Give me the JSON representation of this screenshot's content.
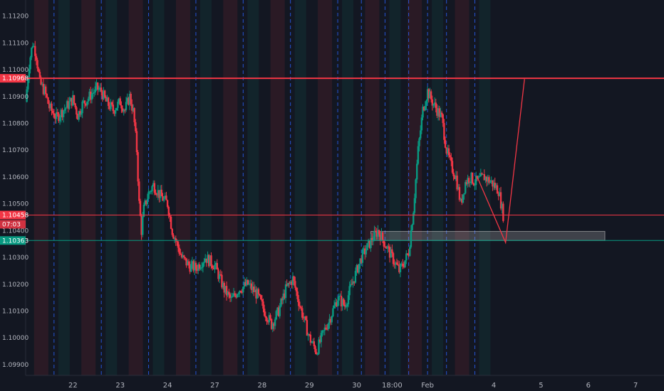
{
  "chart_data": {
    "type": "candlestick",
    "ylim": [
      1.0986,
      1.1126
    ],
    "y_ticks": [
      "1.11200",
      "1.11100",
      "1.11000",
      "1.10900",
      "1.10800",
      "1.10700",
      "1.10600",
      "1.10500",
      "1.10400",
      "1.10300",
      "1.10200",
      "1.10100",
      "1.10000",
      "1.09900"
    ],
    "x_ticks": [
      {
        "label": "22",
        "t": 1
      },
      {
        "label": "23",
        "t": 2
      },
      {
        "label": "24",
        "t": 3
      },
      {
        "label": "27",
        "t": 4
      },
      {
        "label": "28",
        "t": 5
      },
      {
        "label": "29",
        "t": 6
      },
      {
        "label": "30",
        "t": 7
      },
      {
        "label": "18:00",
        "t": 7.75
      },
      {
        "label": "Feb",
        "t": 8.5
      },
      {
        "label": "4",
        "t": 9.9
      },
      {
        "label": "5",
        "t": 10.9
      },
      {
        "label": "6",
        "t": 11.9
      },
      {
        "label": "7",
        "t": 12.9
      }
    ],
    "session_separators_t": [
      0.6,
      1.6,
      2.6,
      3.6,
      4.6,
      5.6,
      6.6,
      7.1,
      7.6,
      8.1,
      8.5,
      8.9,
      9.5
    ],
    "horizontal_lines": [
      {
        "price": 1.10968,
        "label": "1.10968",
        "color": "#f23645",
        "width": 2
      },
      {
        "price": 1.10458,
        "label": "1.10458",
        "color": "#f23645",
        "width": 1
      },
      {
        "price": 1.10363,
        "label": "1.10363",
        "color": "#089981",
        "width": 1
      }
    ],
    "countdown": "07:03",
    "zone": {
      "t_start": 7.3,
      "t_end": 12.25,
      "price_low": 1.10363,
      "price_high": 1.10397
    },
    "projection": [
      {
        "t": 9.55,
        "price": 1.106
      },
      {
        "t": 10.15,
        "price": 1.10355
      },
      {
        "t": 10.55,
        "price": 1.10965
      }
    ],
    "price_path": [
      {
        "t": 0.0,
        "price": 1.1088
      },
      {
        "t": 0.08,
        "price": 1.1103
      },
      {
        "t": 0.15,
        "price": 1.111
      },
      {
        "t": 0.22,
        "price": 1.1106
      },
      {
        "t": 0.3,
        "price": 1.1095
      },
      {
        "t": 0.4,
        "price": 1.1092
      },
      {
        "t": 0.5,
        "price": 1.1086
      },
      {
        "t": 0.65,
        "price": 1.1082
      },
      {
        "t": 0.8,
        "price": 1.1085
      },
      {
        "t": 1.0,
        "price": 1.1089
      },
      {
        "t": 1.1,
        "price": 1.1083
      },
      {
        "t": 1.2,
        "price": 1.1087
      },
      {
        "t": 1.35,
        "price": 1.109
      },
      {
        "t": 1.5,
        "price": 1.1093
      },
      {
        "t": 1.6,
        "price": 1.1092
      },
      {
        "t": 1.7,
        "price": 1.1088
      },
      {
        "t": 1.85,
        "price": 1.1085
      },
      {
        "t": 2.0,
        "price": 1.1088
      },
      {
        "t": 2.1,
        "price": 1.1085
      },
      {
        "t": 2.2,
        "price": 1.109
      },
      {
        "t": 2.28,
        "price": 1.1084
      },
      {
        "t": 2.35,
        "price": 1.107
      },
      {
        "t": 2.4,
        "price": 1.105
      },
      {
        "t": 2.45,
        "price": 1.104
      },
      {
        "t": 2.5,
        "price": 1.1048
      },
      {
        "t": 2.6,
        "price": 1.1054
      },
      {
        "t": 2.7,
        "price": 1.1057
      },
      {
        "t": 2.85,
        "price": 1.1053
      },
      {
        "t": 3.0,
        "price": 1.105
      },
      {
        "t": 3.1,
        "price": 1.104
      },
      {
        "t": 3.2,
        "price": 1.1035
      },
      {
        "t": 3.3,
        "price": 1.103
      },
      {
        "t": 3.45,
        "price": 1.1027
      },
      {
        "t": 3.6,
        "price": 1.1026
      },
      {
        "t": 3.8,
        "price": 1.103
      },
      {
        "t": 4.0,
        "price": 1.1027
      },
      {
        "t": 4.2,
        "price": 1.1018
      },
      {
        "t": 4.35,
        "price": 1.1014
      },
      {
        "t": 4.5,
        "price": 1.1018
      },
      {
        "t": 4.7,
        "price": 1.102
      },
      {
        "t": 4.9,
        "price": 1.1016
      },
      {
        "t": 5.05,
        "price": 1.101
      },
      {
        "t": 5.2,
        "price": 1.1005
      },
      {
        "t": 5.35,
        "price": 1.101
      },
      {
        "t": 5.5,
        "price": 1.1018
      },
      {
        "t": 5.65,
        "price": 1.1022
      },
      {
        "t": 5.8,
        "price": 1.1012
      },
      {
        "t": 6.0,
        "price": 1.1
      },
      {
        "t": 6.15,
        "price": 1.0995
      },
      {
        "t": 6.3,
        "price": 1.1002
      },
      {
        "t": 6.45,
        "price": 1.1008
      },
      {
        "t": 6.6,
        "price": 1.1015
      },
      {
        "t": 6.75,
        "price": 1.1012
      },
      {
        "t": 6.9,
        "price": 1.102
      },
      {
        "t": 7.1,
        "price": 1.103
      },
      {
        "t": 7.3,
        "price": 1.1036
      },
      {
        "t": 7.45,
        "price": 1.104
      },
      {
        "t": 7.6,
        "price": 1.1035
      },
      {
        "t": 7.75,
        "price": 1.103
      },
      {
        "t": 7.9,
        "price": 1.1025
      },
      {
        "t": 8.0,
        "price": 1.1028
      },
      {
        "t": 8.1,
        "price": 1.1032
      },
      {
        "t": 8.2,
        "price": 1.1048
      },
      {
        "t": 8.3,
        "price": 1.107
      },
      {
        "t": 8.4,
        "price": 1.1085
      },
      {
        "t": 8.5,
        "price": 1.1092
      },
      {
        "t": 8.6,
        "price": 1.1088
      },
      {
        "t": 8.7,
        "price": 1.1085
      },
      {
        "t": 8.8,
        "price": 1.1082
      },
      {
        "t": 8.9,
        "price": 1.107
      },
      {
        "t": 9.0,
        "price": 1.1064
      },
      {
        "t": 9.1,
        "price": 1.106
      },
      {
        "t": 9.2,
        "price": 1.105
      },
      {
        "t": 9.3,
        "price": 1.1058
      },
      {
        "t": 9.4,
        "price": 1.106
      },
      {
        "t": 9.5,
        "price": 1.1058
      },
      {
        "t": 9.6,
        "price": 1.1059
      },
      {
        "t": 9.7,
        "price": 1.106
      },
      {
        "t": 9.85,
        "price": 1.1058
      },
      {
        "t": 10.0,
        "price": 1.1055
      },
      {
        "t": 10.1,
        "price": 1.10458
      }
    ]
  }
}
